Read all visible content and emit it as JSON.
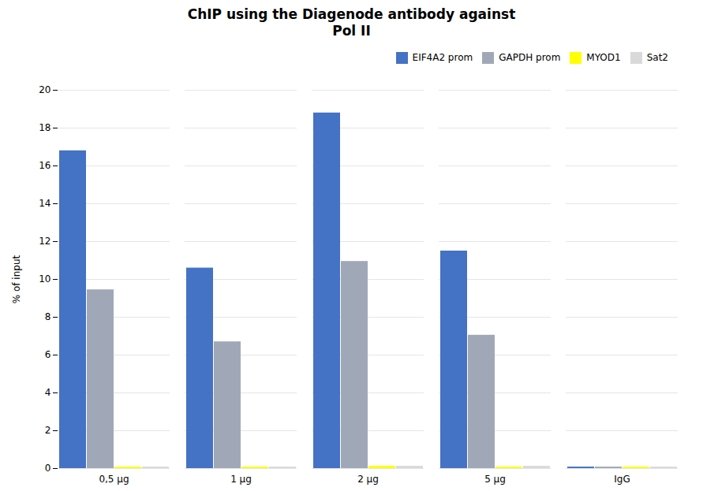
{
  "chart_data": {
    "type": "bar",
    "title": "ChIP using the Diagenode antibody against\nPol II",
    "ylabel": "% of input",
    "categories": [
      "0,5 µg",
      "1 µg",
      "2 µg",
      "5 µg",
      "IgG"
    ],
    "series": [
      {
        "name": "EIF4A2 prom",
        "color": "#4472C4",
        "values": [
          16.8,
          10.6,
          18.8,
          11.5,
          0.08
        ]
      },
      {
        "name": "GAPDH prom",
        "color": "#A0A8B8",
        "values": [
          9.45,
          6.7,
          10.95,
          7.05,
          0.08
        ]
      },
      {
        "name": "MYOD1",
        "color": "#FFFF00",
        "values": [
          0.08,
          0.08,
          0.12,
          0.08,
          0.08
        ]
      },
      {
        "name": "Sat2",
        "color": "#D9D9D9",
        "values": [
          0.08,
          0.08,
          0.12,
          0.12,
          0.08
        ]
      }
    ],
    "ylim": [
      0,
      20
    ],
    "yticks": [
      0,
      2,
      4,
      6,
      8,
      10,
      12,
      14,
      16,
      18,
      20
    ],
    "grid": true,
    "legend": "upper right"
  }
}
